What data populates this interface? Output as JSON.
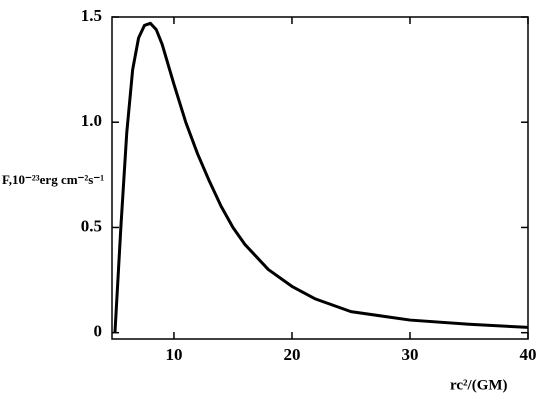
{
  "chart_data": {
    "type": "line",
    "xlabel": "rc²/(GM)",
    "ylabel": "F,10⁻²³erg cm⁻²s⁻¹",
    "x": [
      5,
      5.5,
      6,
      6.5,
      7,
      7.5,
      8,
      8.5,
      9,
      10,
      11,
      12,
      13,
      14,
      15,
      16,
      17,
      18,
      20,
      22,
      25,
      30,
      35,
      40
    ],
    "series": [
      {
        "color": "#000000",
        "values": [
          0,
          0.5,
          0.95,
          1.25,
          1.4,
          1.46,
          1.47,
          1.44,
          1.37,
          1.18,
          1.0,
          0.85,
          0.72,
          0.6,
          0.5,
          0.42,
          0.36,
          0.3,
          0.22,
          0.16,
          0.1,
          0.06,
          0.04,
          0.025
        ]
      }
    ],
    "xlim": [
      4.75,
      40
    ],
    "ylim": [
      -0.03,
      1.5
    ],
    "xticks": [
      10,
      20,
      30,
      40
    ],
    "yticks": [
      0,
      0.5,
      {
        "value": 1.0,
        "label": "1.0"
      },
      1.5
    ]
  }
}
